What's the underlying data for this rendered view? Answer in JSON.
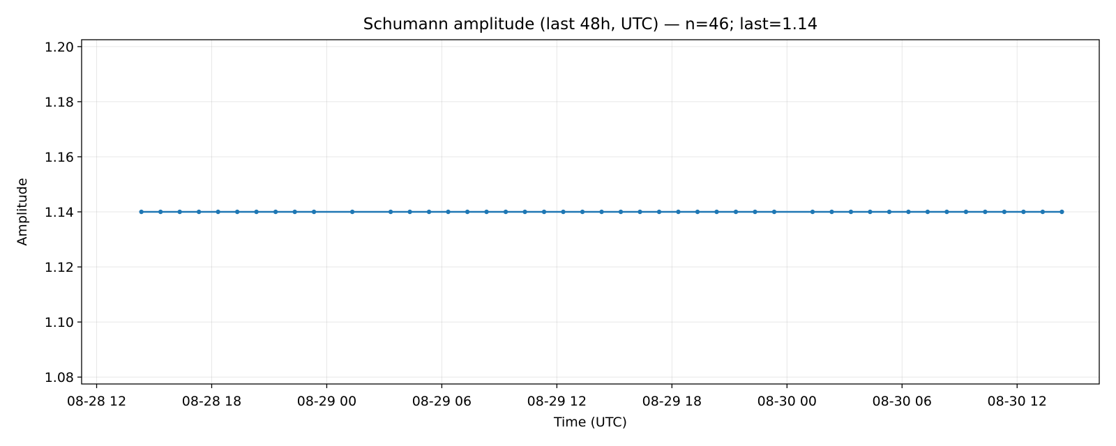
{
  "chart_data": {
    "type": "line",
    "title": "Schumann amplitude (last 48h, UTC) — n=46; last=1.14",
    "xlabel": "Time (UTC)",
    "ylabel": "Amplitude",
    "x_type": "datetime",
    "xlim": [
      "2025-08-28 11:13",
      "2025-08-30 16:17"
    ],
    "ylim": [
      1.0775,
      1.2025
    ],
    "x_ticks": [
      {
        "value": "2025-08-28 12:00",
        "label": "08-28 12"
      },
      {
        "value": "2025-08-28 18:00",
        "label": "08-28 18"
      },
      {
        "value": "2025-08-29 00:00",
        "label": "08-29 00"
      },
      {
        "value": "2025-08-29 06:00",
        "label": "08-29 06"
      },
      {
        "value": "2025-08-29 12:00",
        "label": "08-29 12"
      },
      {
        "value": "2025-08-29 18:00",
        "label": "08-29 18"
      },
      {
        "value": "2025-08-30 00:00",
        "label": "08-30 00"
      },
      {
        "value": "2025-08-30 06:00",
        "label": "08-30 06"
      },
      {
        "value": "2025-08-30 12:00",
        "label": "08-30 12"
      }
    ],
    "y_ticks": [
      {
        "value": 1.08,
        "label": "1.08"
      },
      {
        "value": 1.1,
        "label": "1.10"
      },
      {
        "value": 1.12,
        "label": "1.12"
      },
      {
        "value": 1.14,
        "label": "1.14"
      },
      {
        "value": 1.16,
        "label": "1.16"
      },
      {
        "value": 1.18,
        "label": "1.18"
      },
      {
        "value": 1.2,
        "label": "1.20"
      }
    ],
    "grid": true,
    "series": [
      {
        "color": "#1f77b4",
        "marker": "dot",
        "x": [
          "2025-08-28 14:20",
          "2025-08-28 15:20",
          "2025-08-28 16:20",
          "2025-08-28 17:20",
          "2025-08-28 18:20",
          "2025-08-28 19:20",
          "2025-08-28 20:20",
          "2025-08-28 21:20",
          "2025-08-28 22:20",
          "2025-08-28 23:20",
          "2025-08-29 01:20",
          "2025-08-29 03:20",
          "2025-08-29 04:20",
          "2025-08-29 05:20",
          "2025-08-29 06:20",
          "2025-08-29 07:20",
          "2025-08-29 08:20",
          "2025-08-29 09:20",
          "2025-08-29 10:20",
          "2025-08-29 11:20",
          "2025-08-29 12:20",
          "2025-08-29 13:20",
          "2025-08-29 14:20",
          "2025-08-29 15:20",
          "2025-08-29 16:20",
          "2025-08-29 17:20",
          "2025-08-29 18:20",
          "2025-08-29 19:20",
          "2025-08-29 20:20",
          "2025-08-29 21:20",
          "2025-08-29 22:20",
          "2025-08-29 23:20",
          "2025-08-30 01:20",
          "2025-08-30 02:20",
          "2025-08-30 03:20",
          "2025-08-30 04:20",
          "2025-08-30 05:20",
          "2025-08-30 06:20",
          "2025-08-30 07:20",
          "2025-08-30 08:20",
          "2025-08-30 09:20",
          "2025-08-30 10:20",
          "2025-08-30 11:20",
          "2025-08-30 12:20",
          "2025-08-30 13:20",
          "2025-08-30 14:20"
        ],
        "y": [
          1.14,
          1.14,
          1.14,
          1.14,
          1.14,
          1.14,
          1.14,
          1.14,
          1.14,
          1.14,
          1.14,
          1.14,
          1.14,
          1.14,
          1.14,
          1.14,
          1.14,
          1.14,
          1.14,
          1.14,
          1.14,
          1.14,
          1.14,
          1.14,
          1.14,
          1.14,
          1.14,
          1.14,
          1.14,
          1.14,
          1.14,
          1.14,
          1.14,
          1.14,
          1.14,
          1.14,
          1.14,
          1.14,
          1.14,
          1.14,
          1.14,
          1.14,
          1.14,
          1.14,
          1.14,
          1.14
        ]
      }
    ]
  }
}
